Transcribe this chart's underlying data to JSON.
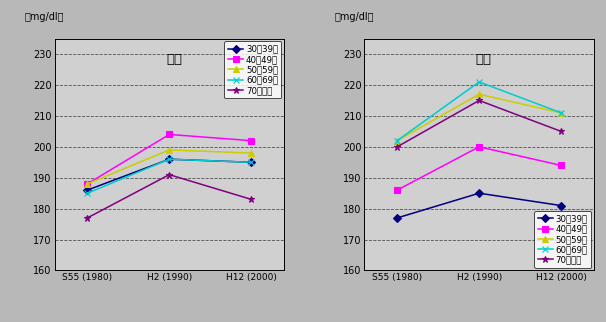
{
  "x_labels": [
    "S55 (1980)",
    "H2 (1990)",
    "H12 (2000)"
  ],
  "x_positions": [
    0,
    1,
    2
  ],
  "male": {
    "title": "男性",
    "legend_loc": "upper right",
    "series": [
      {
        "label": "30～39歳",
        "color": "#000080",
        "marker": "D",
        "values": [
          186,
          196,
          195
        ]
      },
      {
        "label": "40～49歳",
        "color": "#ff00ff",
        "marker": "s",
        "values": [
          188,
          204,
          202
        ]
      },
      {
        "label": "50～59歳",
        "color": "#cccc00",
        "marker": "^",
        "values": [
          188,
          199,
          198
        ]
      },
      {
        "label": "60～69歳",
        "color": "#00cccc",
        "marker": "x",
        "values": [
          185,
          196,
          195
        ]
      },
      {
        "label": "70歳以上",
        "color": "#800080",
        "marker": "*",
        "values": [
          177,
          191,
          183
        ]
      }
    ]
  },
  "female": {
    "title": "女性",
    "legend_loc": "lower right",
    "series": [
      {
        "label": "30～39歳",
        "color": "#000080",
        "marker": "D",
        "values": [
          177,
          185,
          181
        ]
      },
      {
        "label": "40～49歳",
        "color": "#ff00ff",
        "marker": "s",
        "values": [
          186,
          200,
          194
        ]
      },
      {
        "label": "50～59歳",
        "color": "#cccc00",
        "marker": "^",
        "values": [
          202,
          217,
          211
        ]
      },
      {
        "label": "60～69歳",
        "color": "#00cccc",
        "marker": "x",
        "values": [
          202,
          221,
          211
        ]
      },
      {
        "label": "70歳以上",
        "color": "#800080",
        "marker": "*",
        "values": [
          200,
          215,
          205
        ]
      }
    ]
  },
  "ylim": [
    160,
    235
  ],
  "yticks": [
    160,
    170,
    180,
    190,
    200,
    210,
    220,
    230
  ],
  "ylabel": "（mg/dl）",
  "background_color": "#b8b8b8",
  "plot_bg_color": "#d0d0d0",
  "grid_color": "#333333",
  "figsize": [
    6.06,
    3.22
  ],
  "dpi": 100
}
